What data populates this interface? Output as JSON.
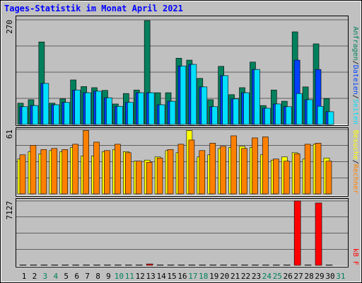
{
  "chart_data": [
    {
      "type": "bar",
      "title": "Tages-Statistik im Monat April 2021",
      "ylim": [
        0,
        270
      ],
      "yticks": [
        270
      ],
      "legend_separator": "/",
      "series": [
        {
          "name": "Anfragen",
          "color": "#00805c",
          "values": [
            55,
            64,
            213,
            55,
            66,
            115,
            98,
            95,
            88,
            53,
            80,
            89,
            268,
            82,
            82,
            171,
            166,
            119,
            64,
            150,
            77,
            95,
            161,
            49,
            89,
            60,
            239,
            97,
            208,
            67,
            0
          ]
        },
        {
          "name": "Dateien",
          "color": "#0040ff",
          "values": [
            46,
            49,
            106,
            51,
            57,
            89,
            82,
            86,
            69,
            47,
            57,
            82,
            82,
            51,
            60,
            151,
            155,
            97,
            46,
            126,
            66,
            82,
            142,
            42,
            53,
            46,
            166,
            64,
            142,
            33,
            0
          ]
        },
        {
          "name": "Seiten",
          "color": "#00e0ff",
          "values": [
            46,
            49,
            106,
            51,
            57,
            89,
            82,
            86,
            69,
            47,
            57,
            82,
            82,
            51,
            60,
            151,
            155,
            97,
            46,
            126,
            66,
            82,
            142,
            42,
            53,
            46,
            80,
            64,
            47,
            33,
            0
          ]
        }
      ]
    },
    {
      "type": "bar",
      "ylim": [
        0,
        61
      ],
      "yticks": [
        61
      ],
      "legend_separator": "/",
      "series": [
        {
          "name": "Besuche",
          "color": "#ffff00",
          "values": [
            33,
            40,
            38,
            41,
            40,
            44,
            36,
            36,
            40,
            42,
            40,
            31,
            32,
            35,
            41,
            39,
            60,
            35,
            37,
            43,
            44,
            45,
            44,
            37,
            32,
            35,
            39,
            33,
            47,
            34,
            0
          ]
        },
        {
          "name": "Rechner",
          "color": "#ff8000",
          "values": [
            37,
            46,
            42,
            43,
            42,
            47,
            60,
            49,
            41,
            47,
            39,
            31,
            30,
            34,
            42,
            47,
            51,
            41,
            48,
            45,
            55,
            43,
            53,
            54,
            33,
            31,
            38,
            47,
            48,
            31,
            0
          ]
        }
      ]
    },
    {
      "type": "bar",
      "ylim": [
        0,
        7127
      ],
      "yticks": [
        7127
      ],
      "categories": [
        "1",
        "2",
        "3",
        "4",
        "5",
        "6",
        "7",
        "8",
        "9",
        "10",
        "11",
        "12",
        "13",
        "14",
        "15",
        "16",
        "17",
        "18",
        "19",
        "20",
        "21",
        "22",
        "23",
        "24",
        "25",
        "26",
        "27",
        "28",
        "29",
        "30",
        "31"
      ],
      "category_colors": [
        "#000",
        "#000",
        "#00805c",
        "#00805c",
        "#000",
        "#000",
        "#000",
        "#000",
        "#000",
        "#00805c",
        "#00805c",
        "#000",
        "#000",
        "#000",
        "#000",
        "#000",
        "#00805c",
        "#00805c",
        "#000",
        "#000",
        "#000",
        "#000",
        "#000",
        "#00805c",
        "#00805c",
        "#000",
        "#000",
        "#000",
        "#000",
        "#000",
        "#00805c"
      ],
      "series": [
        {
          "name": "kB F",
          "color": "#ff0000",
          "values": [
            40,
            40,
            40,
            40,
            40,
            40,
            40,
            40,
            40,
            40,
            40,
            40,
            150,
            40,
            40,
            40,
            40,
            40,
            40,
            40,
            40,
            40,
            40,
            40,
            40,
            40,
            7127,
            40,
            6900,
            40,
            0
          ]
        }
      ]
    }
  ]
}
